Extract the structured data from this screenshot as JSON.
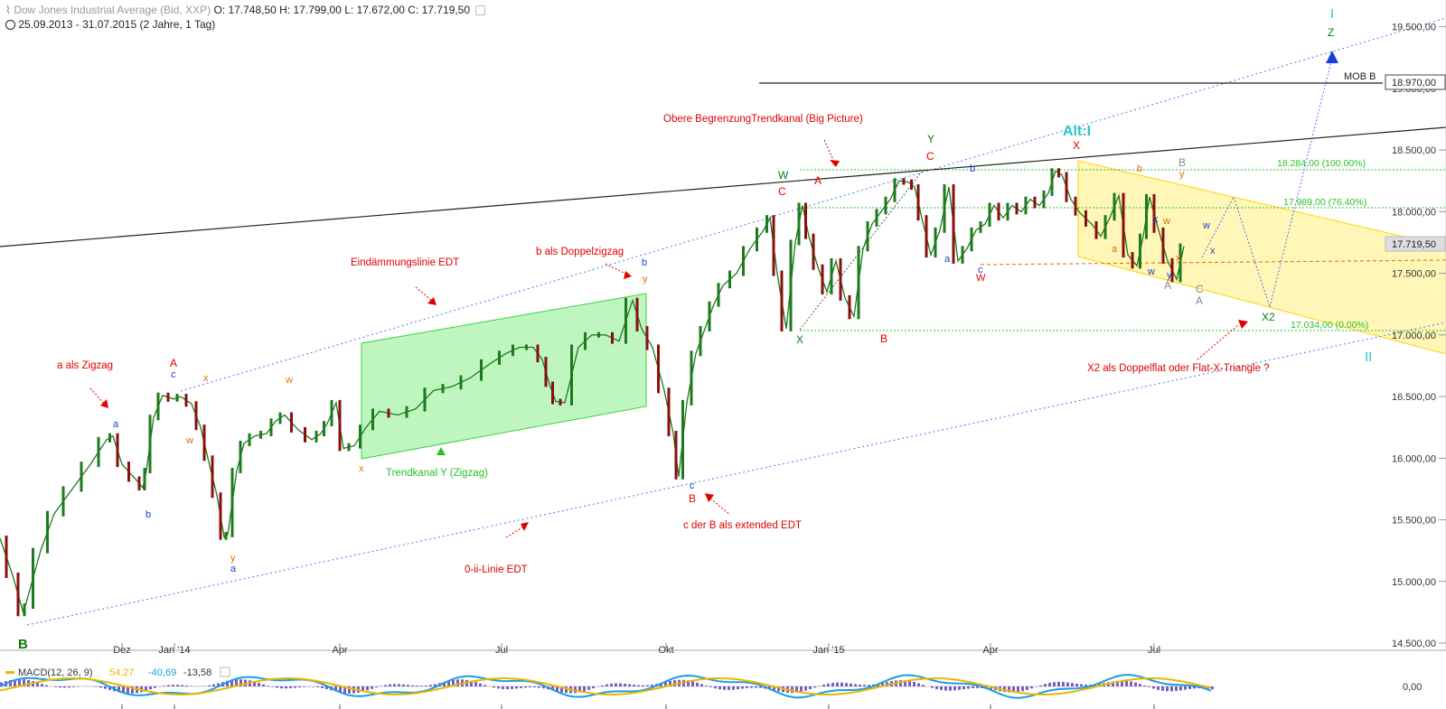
{
  "header": {
    "instrument": "Dow Jones Industrial Average",
    "source": "(Bid, XXP)",
    "ohlc": "O: 17.748,50  H: 17.799,00  L: 17.672,00  C: 17.719,50",
    "range": "25.09.2013 - 31.07.2015 (2 Jahre, 1 Tag)"
  },
  "colors": {
    "red": "#e00000",
    "blue": "#1a3fd6",
    "green": "#0a7a0a",
    "orange": "#e07000",
    "teal": "#29c6c6",
    "grey": "#888888",
    "brightgreen": "#28c228",
    "trendchannel_fill": "#bff5bf",
    "triangle_fill": "#fff6b8"
  },
  "chart_data": {
    "type": "line",
    "title": "Dow Jones Industrial Average",
    "ylabel": "",
    "ylim": [
      14500,
      19600
    ],
    "y_ticks": [
      "19.500,00",
      "19.000,00",
      "18.500,00",
      "18.000,00",
      "17.500,00",
      "17.000,00",
      "16.500,00",
      "16.000,00",
      "15.500,00",
      "15.000,00",
      "14.500,00"
    ],
    "x_ticks": [
      "Dez",
      "Jan '14",
      "Apr",
      "Jul",
      "Okt",
      "Jan '15",
      "Apr",
      "Jul"
    ],
    "series": [
      {
        "x": [
          0,
          14,
          26,
          28,
          45,
          60,
          80,
          100,
          118,
          125,
          135,
          150,
          158,
          162,
          170,
          180,
          192,
          200,
          212,
          222,
          230,
          240,
          248,
          252,
          262,
          270,
          282,
          295,
          305,
          315,
          330,
          345,
          355,
          362,
          372,
          380,
          392,
          405,
          420,
          440,
          460,
          480,
          500,
          520,
          545,
          560,
          575,
          590,
          600,
          608,
          615,
          625,
          640,
          655,
          670,
          685,
          700,
          710,
          722,
          735,
          745,
          751,
          760,
          770,
          780,
          790,
          800,
          815,
          830,
          845,
          852,
          860,
          870,
          880,
          888,
          895,
          905,
          915,
          925,
          935,
          945,
          955,
          965,
          975,
          985,
          995,
          1005,
          1012,
          1020,
          1030,
          1040,
          1050,
          1060,
          1070,
          1080,
          1090,
          1100,
          1110,
          1120,
          1130,
          1140,
          1150,
          1160,
          1168,
          1175,
          1185,
          1195,
          1208,
          1218,
          1228,
          1238,
          1248,
          1258,
          1265,
          1272,
          1282,
          1292,
          1302,
          1310
        ],
        "y": [
          15350,
          15050,
          14740,
          14800,
          15250,
          15550,
          15750,
          15950,
          16150,
          16180,
          15950,
          15830,
          15760,
          15900,
          16330,
          16510,
          16480,
          16500,
          16440,
          16250,
          16000,
          15700,
          15360,
          15380,
          15900,
          16120,
          16180,
          16200,
          16300,
          16350,
          16230,
          16150,
          16200,
          16280,
          16450,
          16080,
          16100,
          16250,
          16380,
          16350,
          16400,
          16550,
          16580,
          16650,
          16780,
          16850,
          16900,
          16900,
          16800,
          16600,
          16460,
          16450,
          16900,
          17000,
          17000,
          16950,
          17280,
          17050,
          16900,
          16550,
          16200,
          15850,
          16450,
          16850,
          17050,
          17250,
          17400,
          17500,
          17700,
          17850,
          17950,
          17500,
          17050,
          17750,
          18050,
          17800,
          17550,
          17350,
          17600,
          17300,
          17150,
          17700,
          17900,
          18000,
          18100,
          18250,
          18240,
          18200,
          17950,
          17650,
          17850,
          18200,
          17600,
          17700,
          17850,
          17900,
          18050,
          17950,
          18050,
          18000,
          18100,
          18050,
          18150,
          18330,
          18300,
          18100,
          17990,
          17900,
          17800,
          17950,
          18130,
          17650,
          17560,
          17800,
          18120,
          17850,
          17600,
          17450,
          17720
        ]
      }
    ]
  },
  "macd": {
    "label": "MACD(12, 26, 9)",
    "v1": "54,27",
    "v2": "-40,69",
    "v3": "-13,58",
    "zero_label": "0,00"
  },
  "price_tags": {
    "mob": "MOB B",
    "mob_price": "18.970,00",
    "current_price": "17.719,50"
  },
  "fib_labels": {
    "f100": "18.284,00 (100.00%)",
    "f76": "17.989,00 (76.40%)",
    "f0": "17.034,00 (0.00%)"
  },
  "annotations": {
    "a_zigzag": "a als Zigzag",
    "eindaemmung": "Eindämmungslinie EDT",
    "b_doppel": "b als Doppelzigzag",
    "trendkanal_y": "Trendkanal Y (Zigzag)",
    "null_ii": "0-ii-Linie EDT",
    "c_der_b": "c der B als extended EDT",
    "obere": "Obere BegrenzungTrendkanal (Big Picture)",
    "x2_doppelflat": "X2 als Doppelflat oder Flat-X-Triangle ?",
    "alt_i": "Alt:I"
  },
  "wave_labels": {
    "B": "B",
    "A": "A",
    "C": "C",
    "X": "X",
    "W": "W",
    "Y": "Y",
    "Z": "Z",
    "a": "a",
    "b": "b",
    "c": "c",
    "x": "x",
    "y": "y",
    "w": "w",
    "X2": "X2",
    "I": "I",
    "II": "II"
  }
}
